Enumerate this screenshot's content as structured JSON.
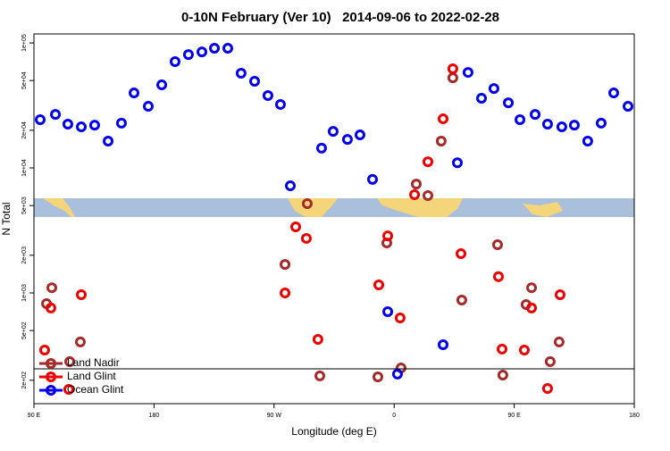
{
  "chart_data": {
    "type": "scatter",
    "title": "0-10N February (Ver 10)   2014-09-06 to 2022-02-28",
    "x_label": "Longitude (deg E)",
    "y_label": "N Total",
    "log_y": true,
    "legend": "lower left",
    "xlim": [
      90,
      540
    ],
    "xticks": [
      {
        "value": 90,
        "label": "90 E"
      },
      180,
      {
        "value": 270,
        "label": "90 W"
      },
      {
        "value": 360,
        "label": "0"
      },
      {
        "value": 450,
        "label": "90 E"
      },
      {
        "value": 540,
        "label": "180"
      }
    ],
    "ylim": [
      130,
      118000
    ],
    "yticks": [
      {
        "value": 200,
        "label": "2e+02"
      },
      {
        "value": 500,
        "label": "5e+02"
      },
      {
        "value": 1000,
        "label": "1e+03"
      },
      {
        "value": 2000,
        "label": "2e+03"
      },
      {
        "value": 5000,
        "label": "5e+03"
      },
      {
        "value": 10000,
        "label": "1e+04"
      },
      {
        "value": 20000,
        "label": "2e+04"
      },
      {
        "value": 50000,
        "label": "5e+04"
      },
      {
        "value": 100000,
        "label": "1e+05"
      }
    ],
    "series": [
      {
        "name": "Land Nadir",
        "color": "#a52a2a",
        "x": [
          99.4,
          103.4,
          116.8,
          124.8,
          278.2,
          294.9,
          304.3,
          347.8,
          354.5,
          365.2,
          376.6,
          385.3,
          395.3,
          404.0,
          410.7,
          437.5,
          441.5,
          458.9,
          463.0,
          477.0,
          483.7
        ],
        "values": [
          821,
          1100,
          282,
          405,
          1690,
          5180,
          217,
          213,
          2510,
          251,
          7430,
          6010,
          16400,
          52600,
          877,
          2430,
          220,
          807,
          1100,
          282,
          405
        ]
      },
      {
        "name": "Land Glint",
        "color": "#ee0000",
        "x": [
          98.0,
          102.7,
          116.1,
          125.5,
          278.2,
          286.2,
          294.2,
          302.9,
          348.5,
          355.2,
          364.5,
          375.3,
          385.3,
          396.7,
          404.0,
          410.1,
          438.2,
          440.9,
          457.6,
          463.0,
          475.0,
          484.4
        ],
        "values": [
          349,
          757,
          169,
          968,
          1000,
          3380,
          2730,
          425,
          1160,
          2860,
          631,
          6110,
          11200,
          24700,
          62100,
          2060,
          1350,
          355,
          349,
          757,
          172,
          968
        ]
      },
      {
        "name": "Ocean Glint",
        "color": "#0000ee",
        "x": [
          94.7,
          106.1,
          115.4,
          125.5,
          135.5,
          145.6,
          155.6,
          165.0,
          175.7,
          185.8,
          195.8,
          205.8,
          215.9,
          225.3,
          235.3,
          245.3,
          255.4,
          265.4,
          274.8,
          282.2,
          305.6,
          314.3,
          325.0,
          334.4,
          343.8,
          355.2,
          362.5,
          396.7,
          407.4,
          415.4,
          425.5,
          434.8,
          445.6,
          454.3,
          465.7,
          475.0,
          485.7,
          495.1,
          505.1,
          515.2,
          524.6,
          535.3
        ],
        "values": [
          24300,
          26800,
          22400,
          21300,
          22000,
          16400,
          22800,
          39800,
          31100,
          46200,
          70800,
          80700,
          84800,
          90600,
          90600,
          57200,
          49300,
          37900,
          32200,
          7200,
          14400,
          19600,
          16900,
          18400,
          8100,
          708,
          224,
          385,
          11000,
          58100,
          36100,
          43200,
          33200,
          24300,
          26800,
          22400,
          21300,
          22000,
          16400,
          22800,
          39800,
          31100
        ]
      }
    ]
  }
}
